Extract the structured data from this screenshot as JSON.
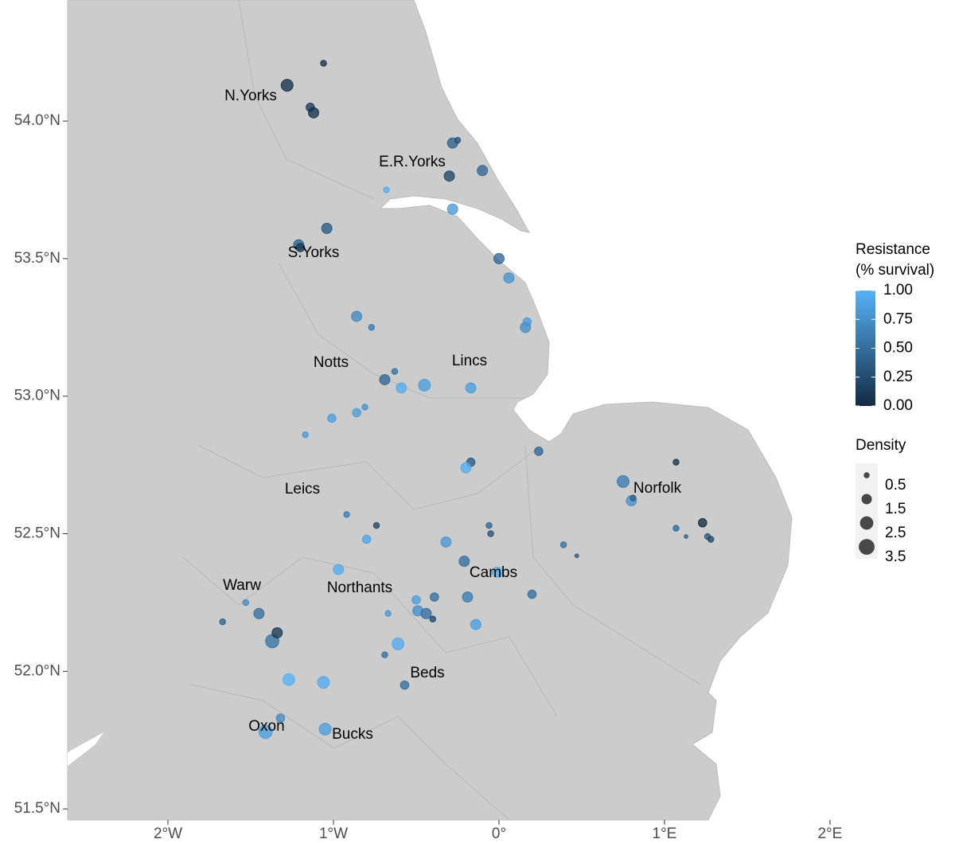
{
  "chart_data": {
    "type": "scatter",
    "xticks": [
      {
        "value": -2,
        "label": "2°W"
      },
      {
        "value": -1,
        "label": "1°W"
      },
      {
        "value": 0,
        "label": "0°"
      },
      {
        "value": 1,
        "label": "1°E"
      },
      {
        "value": 2,
        "label": "2°E"
      }
    ],
    "yticks": [
      {
        "value": 51.5,
        "label": "51.5°N"
      },
      {
        "value": 52,
        "label": "52.0°N"
      },
      {
        "value": 52.5,
        "label": "52.5°N"
      },
      {
        "value": 53,
        "label": "53.0°N"
      },
      {
        "value": 53.5,
        "label": "53.5°N"
      },
      {
        "value": 54,
        "label": "54.0°N"
      }
    ],
    "xlim": [
      -2.606,
      2.01
    ],
    "ylim": [
      51.46,
      54.44
    ],
    "x": [
      -1.06,
      -1.28,
      -1.14,
      -1.12,
      -0.28,
      -0.25,
      -0.3,
      -0.1,
      -0.68,
      -0.28,
      -1.04,
      -1.21,
      -1.2,
      0.0,
      0.06,
      -0.86,
      -0.77,
      0.17,
      0.16,
      -0.69,
      -0.63,
      -0.59,
      -0.45,
      -0.17,
      -0.81,
      -0.86,
      -1.01,
      -1.17,
      0.24,
      -0.17,
      -0.2,
      0.75,
      0.8,
      0.81,
      1.07,
      -0.92,
      -0.74,
      -0.8,
      -0.06,
      -0.05,
      -0.32,
      -0.21,
      -0.01,
      1.07,
      1.13,
      1.23,
      1.26,
      1.28,
      0.39,
      0.47,
      -0.97,
      -1.53,
      -1.67,
      -1.45,
      -1.37,
      -1.34,
      -0.19,
      -0.5,
      0.2,
      -0.67,
      -0.39,
      -0.49,
      -0.44,
      -0.4,
      -0.14,
      -0.61,
      -0.69,
      -1.27,
      -1.06,
      -0.57,
      -1.32,
      -1.41,
      -1.05
    ],
    "y": [
      54.21,
      54.13,
      54.05,
      54.03,
      53.92,
      53.93,
      53.8,
      53.82,
      53.75,
      53.68,
      53.61,
      53.55,
      53.54,
      53.5,
      53.43,
      53.29,
      53.25,
      53.27,
      53.25,
      53.06,
      53.09,
      53.03,
      53.04,
      53.03,
      52.96,
      52.94,
      52.92,
      52.86,
      52.8,
      52.76,
      52.74,
      52.69,
      52.62,
      52.63,
      52.76,
      52.57,
      52.53,
      52.48,
      52.53,
      52.5,
      52.47,
      52.4,
      52.36,
      52.52,
      52.49,
      52.54,
      52.49,
      52.48,
      52.46,
      52.42,
      52.37,
      52.25,
      52.18,
      52.21,
      52.11,
      52.14,
      52.27,
      52.26,
      52.28,
      52.21,
      52.27,
      52.22,
      52.21,
      52.19,
      52.17,
      52.1,
      52.06,
      51.97,
      51.96,
      51.95,
      51.83,
      51.78,
      51.79
    ],
    "resistance": [
      0.05,
      0.05,
      0.1,
      0.05,
      0.4,
      0.3,
      0.2,
      0.45,
      0.95,
      0.8,
      0.35,
      0.4,
      0.1,
      0.45,
      0.75,
      0.7,
      0.6,
      0.85,
      0.75,
      0.45,
      0.5,
      0.95,
      0.85,
      0.85,
      0.75,
      0.85,
      0.85,
      0.8,
      0.45,
      0.35,
      0.95,
      0.6,
      0.75,
      0.4,
      0.05,
      0.6,
      0.2,
      0.9,
      0.45,
      0.3,
      0.8,
      0.5,
      0.95,
      0.45,
      0.4,
      0.0,
      0.35,
      0.2,
      0.5,
      0.35,
      0.95,
      0.7,
      0.4,
      0.5,
      0.55,
      0.1,
      0.6,
      0.85,
      0.5,
      0.8,
      0.5,
      0.75,
      0.5,
      0.2,
      0.85,
      0.95,
      0.5,
      1.0,
      0.95,
      0.5,
      0.7,
      0.85,
      0.85
    ],
    "density": [
      0.5,
      2.0,
      1.0,
      1.5,
      1.5,
      0.5,
      1.5,
      1.5,
      0.5,
      1.5,
      1.5,
      1.5,
      1.0,
      1.5,
      1.5,
      1.5,
      0.5,
      1.0,
      1.5,
      1.5,
      0.5,
      1.5,
      2.0,
      1.5,
      0.5,
      1.0,
      1.0,
      0.5,
      1.0,
      1.0,
      1.5,
      2.0,
      1.5,
      0.5,
      0.5,
      0.5,
      0.5,
      1.0,
      0.5,
      0.5,
      1.5,
      1.5,
      1.5,
      0.5,
      0.2,
      1.0,
      0.5,
      0.5,
      0.5,
      0.2,
      1.5,
      0.5,
      0.5,
      1.5,
      2.5,
      1.5,
      1.5,
      1.0,
      1.0,
      0.5,
      1.0,
      1.5,
      1.5,
      0.5,
      1.5,
      2.0,
      0.5,
      2.0,
      2.0,
      1.0,
      1.0,
      2.5,
      2.0
    ],
    "region_labels": [
      "N.Yorks",
      "E.R.Yorks",
      "S.Yorks",
      "Notts",
      "Lincs",
      "Leics",
      "Norfolk",
      "Warw",
      "Northants",
      "Cambs",
      "Beds",
      "Oxon",
      "Bucks"
    ],
    "land_color": "#cccccc",
    "color_legend": {
      "title": [
        "Resistance",
        "(% survival)"
      ],
      "lim": [
        0,
        1
      ],
      "low": "#132B43",
      "high": "#56B1F7",
      "ticks": [
        {
          "value": 1,
          "label": "1.00"
        },
        {
          "value": 0.75,
          "label": "0.75"
        },
        {
          "value": 0.5,
          "label": "0.50"
        },
        {
          "value": 0.25,
          "label": "0.25"
        },
        {
          "value": 0,
          "label": "0.00"
        }
      ]
    },
    "size_legend": {
      "title": "Density",
      "ticks": [
        0.5,
        1.5,
        2.5,
        3.5
      ]
    }
  }
}
